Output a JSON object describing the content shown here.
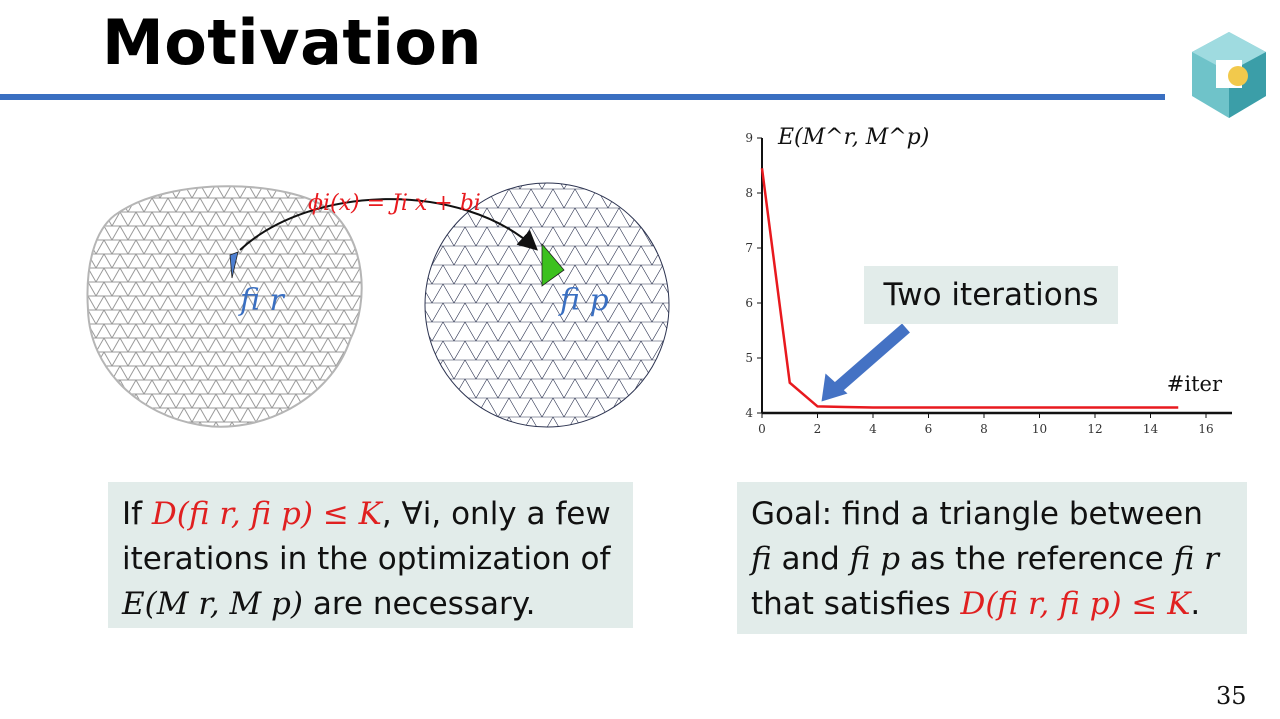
{
  "slide": {
    "title": "Motivation",
    "page_number": "35"
  },
  "figure": {
    "map_label": "ϕi(x) = Ji x + bi",
    "ref_face_label": "fi r",
    "param_face_label": "fi p"
  },
  "chart_data": {
    "type": "line",
    "ylabel": "E(M^r, M^p)",
    "xlabel": "#iter",
    "xlim": [
      0,
      16
    ],
    "ylim": [
      4,
      9
    ],
    "xticks": [
      0,
      2,
      4,
      6,
      8,
      10,
      12,
      14,
      16
    ],
    "yticks": [
      4,
      5,
      6,
      7,
      8,
      9
    ],
    "series": [
      {
        "x": [
          0,
          1,
          2,
          3,
          4,
          5,
          6,
          7,
          8,
          9,
          10,
          11,
          12,
          13,
          14,
          15
        ],
        "values": [
          8.45,
          4.55,
          4.12,
          4.11,
          4.1,
          4.1,
          4.1,
          4.1,
          4.1,
          4.1,
          4.1,
          4.1,
          4.1,
          4.1,
          4.1,
          4.1
        ]
      }
    ],
    "annotation": "Two iterations",
    "colors": {
      "line": "#e8191e",
      "arrow": "#4472c4"
    }
  },
  "left_box": {
    "p1": "If ",
    "cond": "D(fi r, fi p) ≤ K",
    "p2": ", ∀i, only a few iterations in the optimization of ",
    "energy": "E(M r, M p)",
    "p3": " are necessary."
  },
  "right_box": {
    "p1": "Goal: find a triangle between ",
    "fi": "fi",
    "p2": " and ",
    "fip": "fi p",
    "p3": " as the reference ",
    "fir": "fi r",
    "p4": " that satisfies ",
    "cond": "D(fi r, fi p) ≤ K",
    "p5": "."
  }
}
